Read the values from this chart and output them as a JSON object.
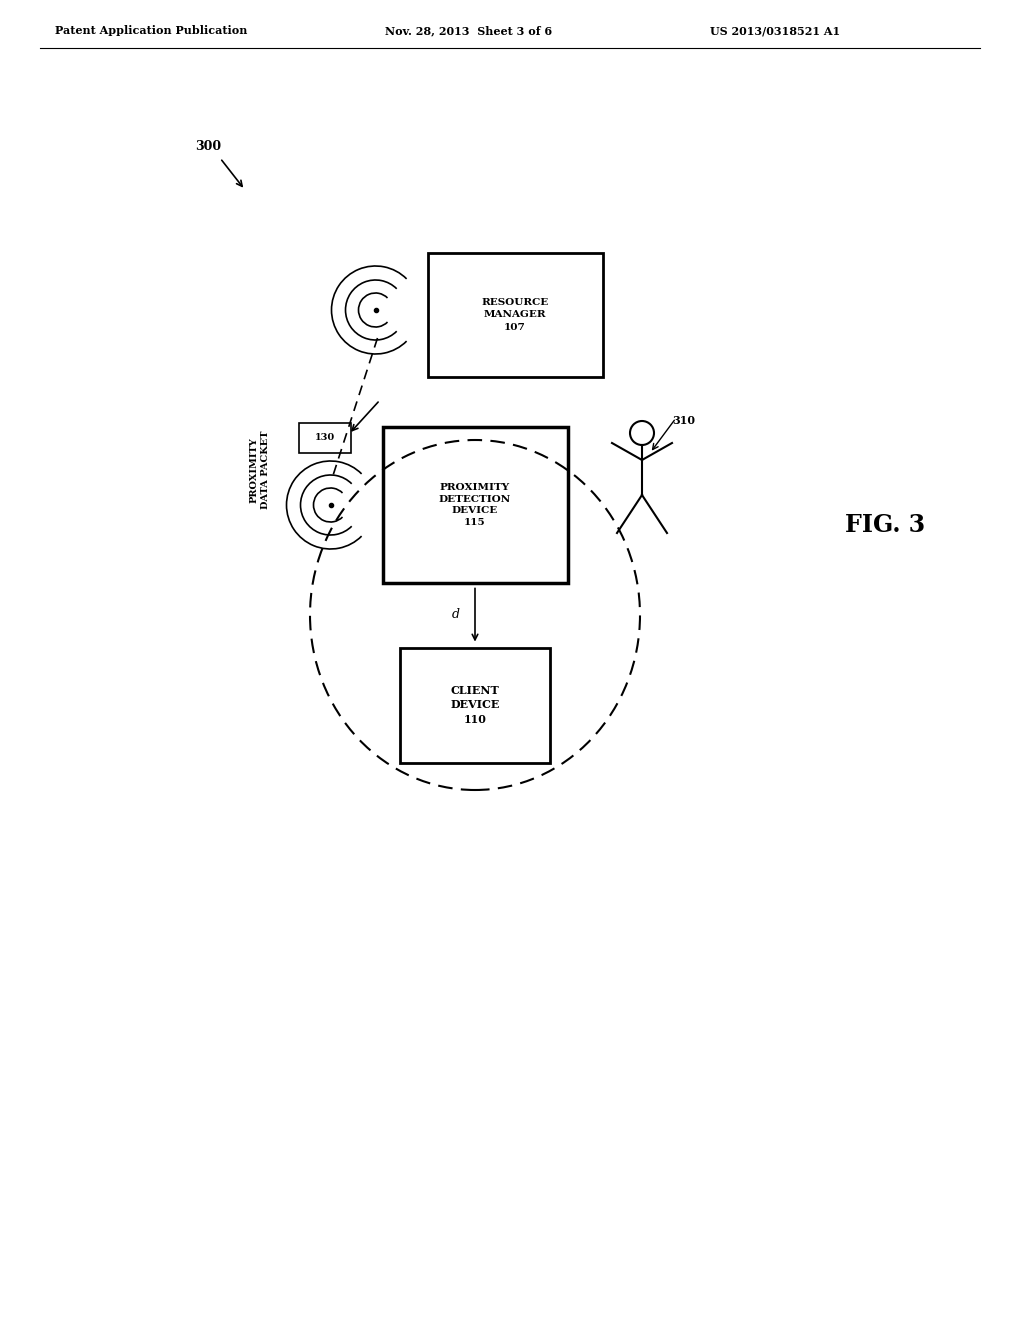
{
  "bg_color": "#ffffff",
  "header_left": "Patent Application Publication",
  "header_mid": "Nov. 28, 2013  Sheet 3 of 6",
  "header_right": "US 2013/0318521 A1",
  "fig_label": "FIG. 3",
  "fig_number": "300",
  "resource_manager_label": "RESOURCE\nMANAGER\n107",
  "proximity_detection_label": "PROXIMITY\nDETECTION\nDEVICE\n115",
  "client_device_label": "CLIENT\nDEVICE\n110",
  "packet_label": "130",
  "proximity_data_packet_label": "PROXIMITY\nDATA PACKET",
  "person_label": "310",
  "distance_label": "d"
}
